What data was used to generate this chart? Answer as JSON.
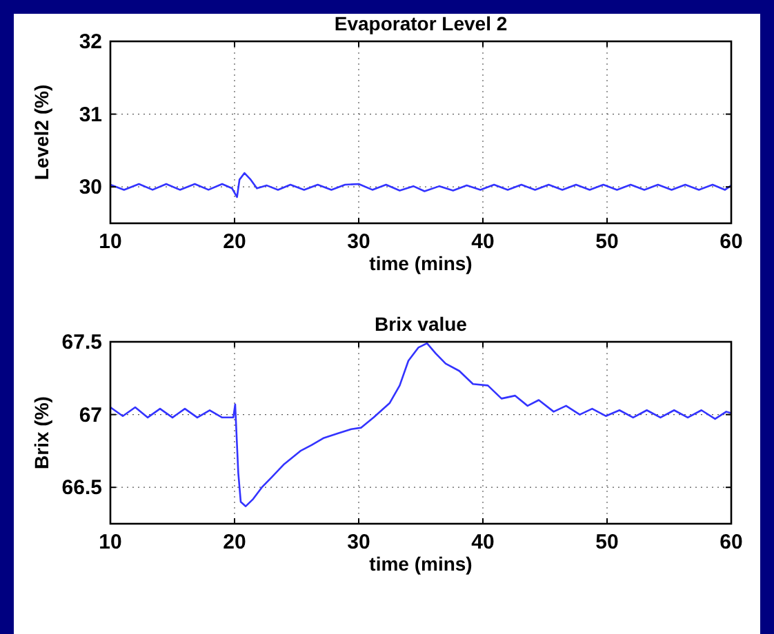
{
  "chart_data": [
    {
      "type": "line",
      "title": "Evaporator Level 2",
      "xlabel": "time (mins)",
      "ylabel": "Level2 (%)",
      "xlim": [
        10,
        60
      ],
      "xticks": [
        10,
        20,
        30,
        40,
        50,
        60
      ],
      "ylim": [
        29.5,
        32
      ],
      "yticks": [
        30,
        31,
        32
      ],
      "grid": true,
      "series": [
        {
          "color": "#3333ff",
          "x": [
            10,
            11.1,
            12.3,
            13.4,
            14.5,
            15.6,
            16.8,
            17.9,
            19,
            19.8,
            20.2,
            20.4,
            20.8,
            21.3,
            21.8,
            22.6,
            23.5,
            24.5,
            25.6,
            26.7,
            27.8,
            28.9,
            30,
            31.1,
            32.2,
            33.3,
            34.4,
            35.3,
            36.5,
            37.6,
            38.7,
            39.8,
            40.9,
            42,
            43.1,
            44.2,
            45.3,
            46.4,
            47.5,
            48.6,
            49.7,
            50.8,
            51.9,
            53,
            54.1,
            55.2,
            56.3,
            57.4,
            58.5,
            59.5,
            60
          ],
          "values": [
            30.03,
            29.96,
            30.04,
            29.96,
            30.04,
            29.96,
            30.04,
            29.96,
            30.04,
            29.98,
            29.86,
            30.1,
            30.19,
            30.1,
            29.98,
            30.02,
            29.96,
            30.03,
            29.96,
            30.03,
            29.96,
            30.03,
            30.04,
            29.96,
            30.03,
            29.95,
            30.01,
            29.94,
            30.01,
            29.95,
            30.02,
            29.96,
            30.03,
            29.96,
            30.03,
            29.96,
            30.03,
            29.96,
            30.03,
            29.96,
            30.03,
            29.96,
            30.03,
            29.96,
            30.03,
            29.96,
            30.03,
            29.96,
            30.03,
            29.96,
            30.02
          ]
        }
      ]
    },
    {
      "type": "line",
      "title": "Brix value",
      "xlabel": "time (mins)",
      "ylabel": "Brix (%)",
      "xlim": [
        10,
        60
      ],
      "xticks": [
        10,
        20,
        30,
        40,
        50,
        60
      ],
      "ylim": [
        66.25,
        67.5
      ],
      "yticks": [
        {
          "value": 66.5,
          "label": "66.5"
        },
        {
          "value": 67,
          "label": "67"
        },
        {
          "value": 67.5,
          "label": "67.5"
        }
      ],
      "grid": true,
      "series": [
        {
          "color": "#3333ff",
          "x": [
            10,
            11,
            12,
            13,
            14,
            15,
            16,
            17,
            18,
            19,
            19.9,
            20.05,
            20.3,
            20.5,
            20.9,
            21.5,
            22.2,
            23,
            24,
            25.3,
            26.2,
            27.2,
            28.3,
            29.4,
            30.2,
            31.2,
            32.5,
            33.3,
            34,
            34.8,
            35.5,
            36.2,
            37,
            38.1,
            39.2,
            40.4,
            41.5,
            42.6,
            43.6,
            44.5,
            45.7,
            46.7,
            47.8,
            48.8,
            49.9,
            51,
            52.1,
            53.2,
            54.3,
            55.4,
            56.5,
            57.6,
            58.7,
            59.6,
            60
          ],
          "values": [
            67.05,
            66.99,
            67.05,
            66.98,
            67.04,
            66.98,
            67.04,
            66.98,
            67.03,
            66.98,
            66.98,
            67.07,
            66.6,
            66.4,
            66.37,
            66.42,
            66.5,
            66.57,
            66.66,
            66.75,
            66.79,
            66.84,
            66.87,
            66.9,
            66.91,
            66.98,
            67.08,
            67.2,
            67.37,
            67.46,
            67.49,
            67.42,
            67.35,
            67.3,
            67.21,
            67.2,
            67.11,
            67.13,
            67.06,
            67.1,
            67.02,
            67.06,
            67.0,
            67.04,
            66.99,
            67.03,
            66.98,
            67.03,
            66.98,
            67.03,
            66.98,
            67.03,
            66.97,
            67.02,
            67.01
          ]
        }
      ]
    }
  ]
}
